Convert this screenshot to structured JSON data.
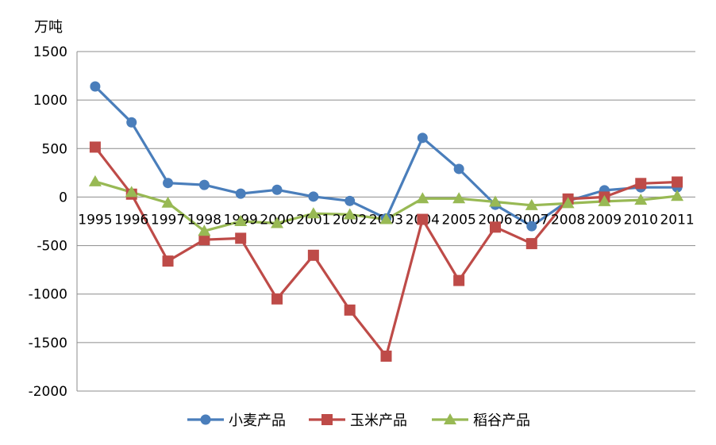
{
  "chart_data": {
    "type": "line",
    "ylabel": "万吨",
    "x": [
      "1995",
      "1996",
      "1997",
      "1998",
      "1999",
      "2000",
      "2001",
      "2002",
      "2003",
      "2004",
      "2005",
      "2006",
      "2007",
      "2008",
      "2009",
      "2010",
      "2011"
    ],
    "ylim": [
      -2000,
      1500
    ],
    "yticks": [
      1500,
      1000,
      500,
      0,
      -500,
      -1000,
      -1500,
      -2000
    ],
    "grid": true,
    "legend": "bottom",
    "series": [
      {
        "name": "小麦产品",
        "color": "#4A7EBB",
        "marker": "circle",
        "values": [
          1140,
          770,
          145,
          125,
          35,
          75,
          5,
          -40,
          -220,
          610,
          290,
          -80,
          -300,
          -40,
          70,
          100,
          100
        ]
      },
      {
        "name": "玉米产品",
        "color": "#BE4B48",
        "marker": "square",
        "values": [
          515,
          30,
          -660,
          -440,
          -425,
          -1050,
          -600,
          -1165,
          -1640,
          -230,
          -860,
          -310,
          -480,
          -20,
          0,
          140,
          155
        ]
      },
      {
        "name": "稻谷产品",
        "color": "#98B954",
        "marker": "triangle",
        "values": [
          160,
          50,
          -60,
          -350,
          -250,
          -270,
          -170,
          -180,
          -230,
          -15,
          -15,
          -50,
          -85,
          -65,
          -45,
          -30,
          10
        ]
      }
    ]
  }
}
